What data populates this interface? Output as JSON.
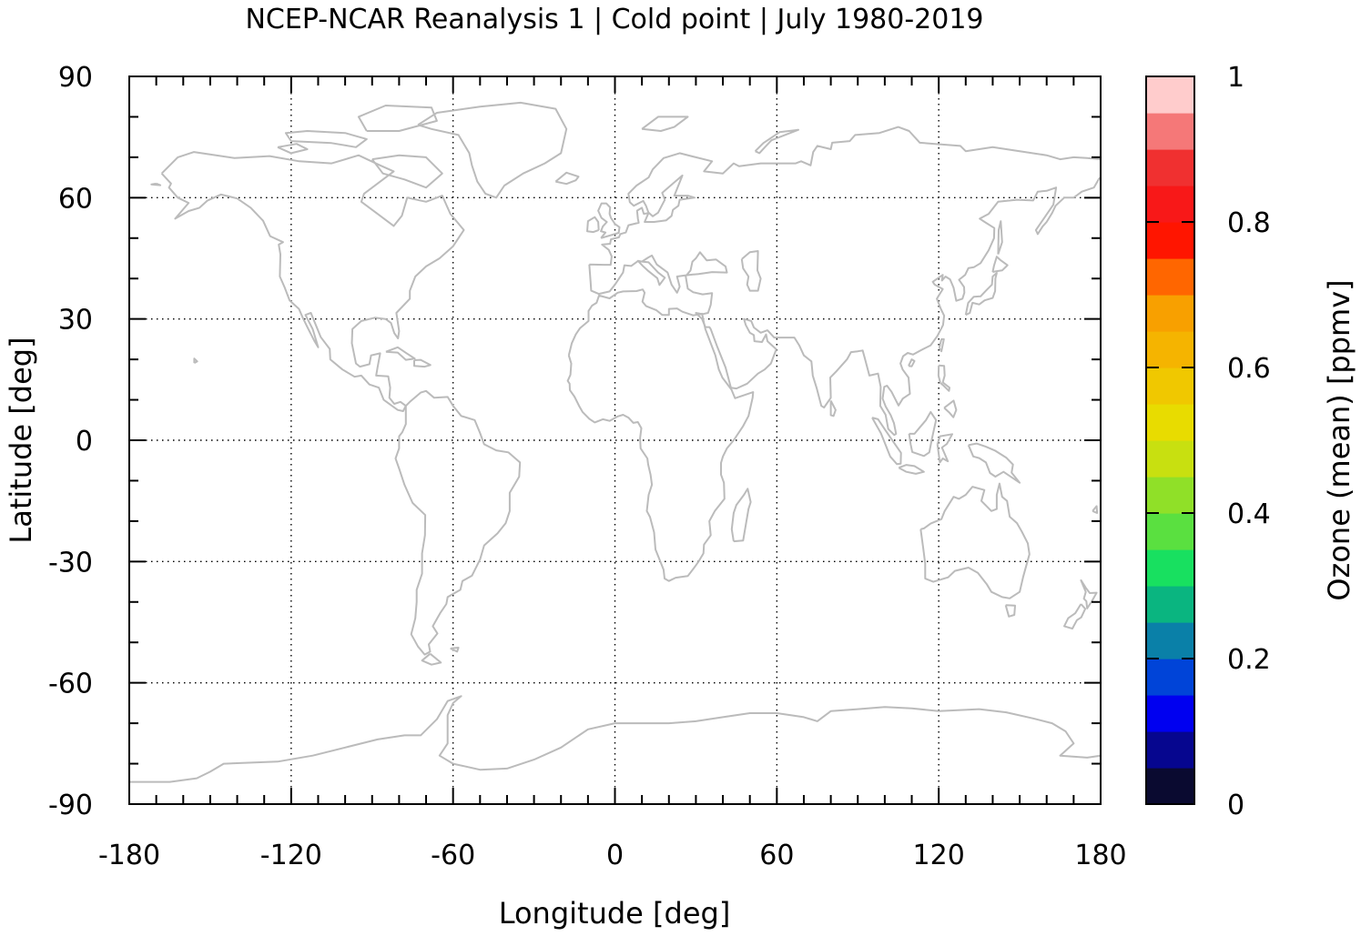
{
  "chart_data": {
    "type": "heatmap",
    "title": "NCEP-NCAR Reanalysis 1 | Cold point | July 1980-2019",
    "xlabel": "Longitude [deg]",
    "ylabel": "Latitude [deg]",
    "xlim": [
      -180,
      180
    ],
    "ylim": [
      -90,
      90
    ],
    "xticks": [
      -180,
      -120,
      -60,
      0,
      60,
      120,
      180
    ],
    "xtick_labels": [
      "-180",
      "-120",
      "-60",
      "0",
      "60",
      "120",
      "180"
    ],
    "yticks": [
      -90,
      -60,
      -30,
      0,
      30,
      60,
      90
    ],
    "ytick_labels": [
      "-90",
      "-60",
      "-30",
      "0",
      "30",
      "60",
      "90"
    ],
    "grid": true,
    "values": [],
    "basemap": "world coastlines",
    "coastline_color": "#bbbbbb",
    "colorbar": {
      "label": "Ozone (mean) [ppmv]",
      "range": [
        0,
        1
      ],
      "ticks": [
        0,
        0.2,
        0.4,
        0.6,
        0.8,
        1
      ],
      "tick_labels": [
        "0",
        "0.2",
        "0.4",
        "0.6",
        "0.8",
        "1"
      ],
      "colors": [
        "#0a0a30",
        "#06068f",
        "#0000f0",
        "#0044d8",
        "#0a80a8",
        "#0ab580",
        "#18e060",
        "#5ae040",
        "#90e028",
        "#c8e010",
        "#e8dc00",
        "#f0c800",
        "#f5b400",
        "#f8a000",
        "#ff6600",
        "#ff1500",
        "#f81818",
        "#f03030",
        "#f57878",
        "#ffcccc"
      ]
    }
  }
}
